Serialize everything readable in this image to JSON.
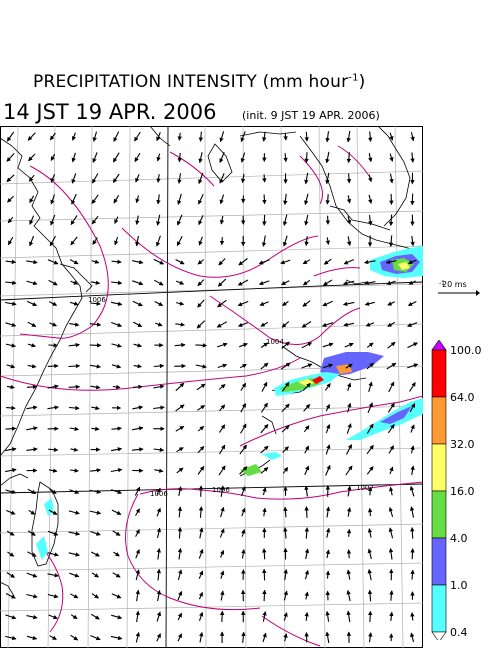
{
  "title": {
    "main_prefix": "PRECIPITATION INTENSITY (mm hour",
    "main_exponent": "-1",
    "main_suffix": ")",
    "datetime": "14 JST 19 APR. 2006",
    "init": "(init. 9 JST 19 APR. 2006)"
  },
  "reference_vector": {
    "label": "20 ms",
    "exponent": "-1"
  },
  "legend": {
    "levels": [
      "100.0",
      "64.0",
      "32.0",
      "16.0",
      "4.0",
      "1.0",
      "0.4"
    ],
    "colors": [
      "#cc00ff",
      "#ff0000",
      "#ff9933",
      "#ffff66",
      "#66dd44",
      "#6666ff",
      "#55ffff",
      "#ffffff"
    ]
  },
  "isobars": [
    "1006",
    "1004",
    "1006",
    "1006",
    "1007"
  ]
}
